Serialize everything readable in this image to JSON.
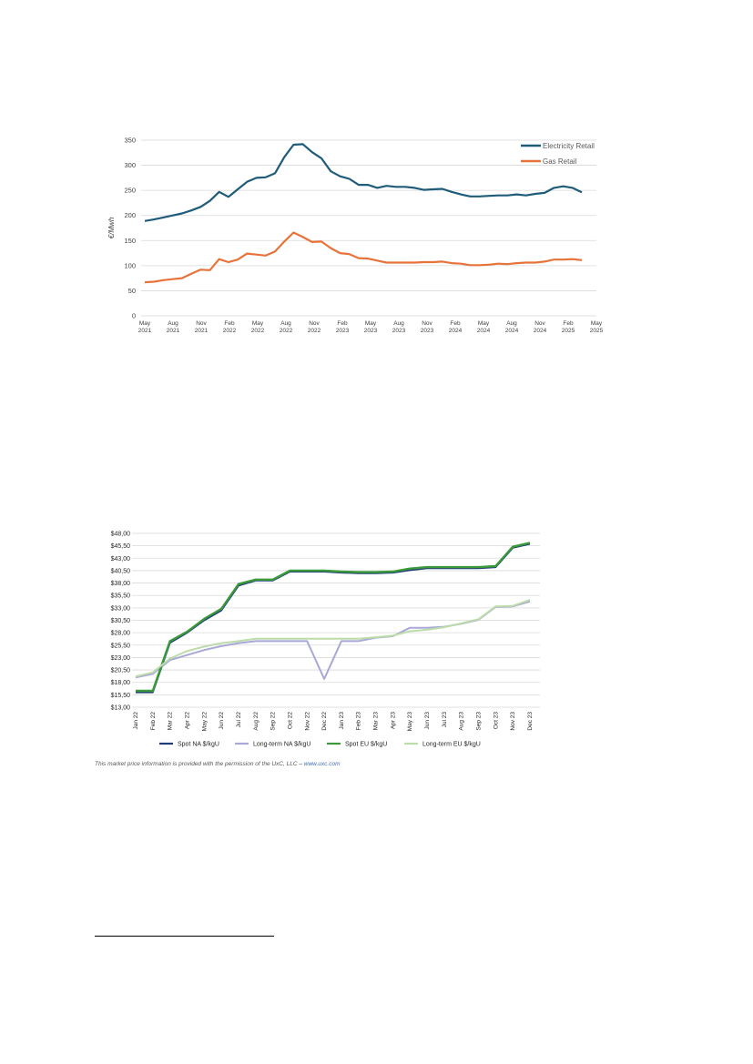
{
  "credit": {
    "text": "This market price information is provided with the permission of the UxC, LLC – ",
    "link": "www.uxc.com"
  },
  "chart_data": [
    {
      "type": "line",
      "ylabel": "€/Mwh",
      "xlabel": "",
      "ylim": [
        0,
        350
      ],
      "yticks": [
        "0",
        "50",
        "100",
        "150",
        "200",
        "250",
        "300",
        "350"
      ],
      "ytick_values": [
        0,
        50,
        100,
        150,
        200,
        250,
        300,
        350
      ],
      "grid": true,
      "legend": "top-right",
      "x_tick_labels": [
        [
          "May",
          "2021"
        ],
        [
          "Aug",
          "2021"
        ],
        [
          "Nov",
          "2021"
        ],
        [
          "Feb",
          "2022"
        ],
        [
          "May",
          "2022"
        ],
        [
          "Aug",
          "2022"
        ],
        [
          "Nov",
          "2022"
        ],
        [
          "Feb",
          "2023"
        ],
        [
          "May",
          "2023"
        ],
        [
          "Aug",
          "2023"
        ],
        [
          "Nov",
          "2023"
        ],
        [
          "Feb",
          "2024"
        ],
        [
          "May",
          "2024"
        ],
        [
          "Aug",
          "2024"
        ],
        [
          "Nov",
          "2024"
        ],
        [
          "Feb",
          "2025"
        ],
        [
          "May",
          "2025"
        ]
      ],
      "x_start": "2021-05",
      "series": [
        {
          "name": "Electricity Retail",
          "color": "#1f5c7a",
          "values": [
            189,
            192,
            196,
            200,
            204,
            210,
            217,
            229,
            247,
            237,
            252,
            267,
            275,
            276,
            284,
            316,
            341,
            342,
            326,
            314,
            288,
            278,
            273,
            261,
            261,
            255,
            259,
            257,
            257,
            255,
            251,
            252,
            253,
            247,
            242,
            238,
            238,
            239,
            240,
            240,
            242,
            240,
            243,
            245,
            255,
            258,
            255,
            246
          ]
        },
        {
          "name": "Gas Retail",
          "color": "#e8733a",
          "values": [
            67,
            68,
            71,
            73,
            75,
            84,
            92,
            91,
            113,
            107,
            112,
            124,
            122,
            120,
            128,
            148,
            166,
            157,
            147,
            148,
            135,
            125,
            123,
            115,
            114,
            110,
            106,
            106,
            106,
            106,
            107,
            107,
            108,
            105,
            104,
            101,
            101,
            102,
            104,
            103,
            105,
            106,
            106,
            108,
            112,
            112,
            113,
            111
          ]
        }
      ]
    },
    {
      "type": "line",
      "ylim": [
        13,
        48
      ],
      "yticks": [
        "$13,00",
        "$15,50",
        "$18,00",
        "$20,50",
        "$23,00",
        "$25,50",
        "$28,00",
        "$30,50",
        "$33,00",
        "$35,50",
        "$38,00",
        "$40,50",
        "$43,00",
        "$45,50",
        "$48,00"
      ],
      "ytick_values": [
        13,
        15.5,
        18,
        20.5,
        23,
        25.5,
        28,
        30.5,
        33,
        35.5,
        38,
        40.5,
        43,
        45.5,
        48
      ],
      "grid": true,
      "legend": "bottom",
      "categories": [
        "Jan 22",
        "Feb 22",
        "Mar 22",
        "Apr 22",
        "May 22",
        "Jun 22",
        "Jul 22",
        "Aug 22",
        "Sep 22",
        "Oct 22",
        "Nov 22",
        "Dec 22",
        "Jan 23",
        "Feb 23",
        "Mar 23",
        "Apr 23",
        "May 23",
        "Jun 23",
        "Jul 23",
        "Aug 23",
        "Sep 23",
        "Oct 23",
        "Nov 23",
        "Dec 23"
      ],
      "series": [
        {
          "name": "Spot NA $/kgU",
          "color": "#1f3b7a",
          "values": [
            16,
            16,
            26,
            28,
            30.5,
            32.5,
            37.5,
            38.5,
            38.5,
            40.3,
            40.3,
            40.3,
            40.1,
            40,
            40,
            40.1,
            40.6,
            41,
            41,
            41,
            41,
            41.2,
            45.1,
            45.9
          ]
        },
        {
          "name": "Long-term NA $/kgU",
          "color": "#a9a8d6",
          "values": [
            19,
            19.7,
            22.5,
            23.5,
            24.5,
            25.3,
            25.9,
            26.3,
            26.3,
            26.3,
            26.3,
            18.7,
            26.3,
            26.3,
            27,
            27.3,
            29,
            29,
            29.2,
            29.8,
            30.6,
            33.2,
            33.3,
            34.3
          ]
        },
        {
          "name": "Spot EU $/kgU",
          "color": "#3a9a3a",
          "values": [
            16.3,
            16.3,
            26.3,
            28.2,
            30.8,
            32.8,
            37.8,
            38.7,
            38.7,
            40.5,
            40.5,
            40.5,
            40.3,
            40.2,
            40.2,
            40.3,
            40.9,
            41.2,
            41.2,
            41.2,
            41.2,
            41.4,
            45.3,
            46.1
          ]
        },
        {
          "name": "Long-term EU $/kgU",
          "color": "#bcdcaa",
          "values": [
            19.2,
            20,
            22.8,
            24.3,
            25.2,
            25.9,
            26.3,
            26.8,
            26.8,
            26.8,
            26.8,
            26.8,
            26.8,
            26.8,
            27.1,
            27.4,
            28.3,
            28.6,
            29.1,
            29.9,
            30.7,
            33.3,
            33.4,
            34.6
          ]
        }
      ]
    }
  ]
}
